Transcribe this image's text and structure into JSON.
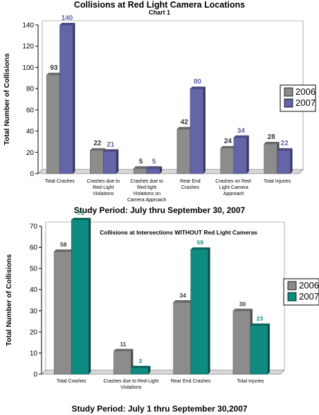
{
  "chart1": {
    "title": "Collisions at Red Light Camera Locations",
    "subtitle": "Chart 1",
    "study_period": "Study Period:  July thru September 30, 2007"
  },
  "chart2": {
    "title": "Collisions at Intersections WITHOUT Red Light Cameras",
    "study_period": "Study Period:  July 1 thru September 30,2007"
  },
  "colors": {
    "y2006": "#8c8c8c",
    "y2007_chart1": "#6464a8",
    "y2007_chart2": "#0f8c80"
  },
  "chart_data": [
    {
      "type": "bar",
      "title": "Collisions at Red Light Camera Locations",
      "subtitle": "Chart 1",
      "ylabel": "Total Number of Collisions",
      "xlabel": "",
      "ylim": [
        0,
        140
      ],
      "yticks": [
        0,
        20,
        40,
        60,
        80,
        100,
        120,
        140
      ],
      "grid": false,
      "legend": "right",
      "categories": [
        [
          "Total Crashes"
        ],
        [
          "Crashes due to",
          "Red-Light",
          "Violations"
        ],
        [
          "Crashes due to",
          "Red-light",
          "Violations on",
          "Camera Approach"
        ],
        [
          "Rear End",
          "Crashes"
        ],
        [
          "Crashes on Red-",
          "Light Camera",
          "Approach"
        ],
        [
          "Total Injuries"
        ]
      ],
      "series": [
        {
          "name": "2006",
          "values": [
            93,
            22,
            5,
            42,
            24,
            28
          ]
        },
        {
          "name": "2007",
          "values": [
            140,
            21,
            5,
            80,
            34,
            22
          ]
        }
      ]
    },
    {
      "type": "bar",
      "title": "Collisions at Intersections WITHOUT Red Light Cameras",
      "ylabel": "Total Number of Collisions",
      "xlabel": "",
      "ylim": [
        0,
        70
      ],
      "yticks": [
        0,
        10,
        20,
        30,
        40,
        50,
        60,
        70
      ],
      "grid": false,
      "legend": "right",
      "categories": [
        [
          "Total Crashes"
        ],
        [
          "Crashes due to Red-Light",
          "Violations"
        ],
        [
          "Rear End      Crashes"
        ],
        [
          "Total Injuries"
        ]
      ],
      "series": [
        {
          "name": "2006",
          "values": [
            58,
            11,
            34,
            30
          ]
        },
        {
          "name": "2007",
          "values": [
            73,
            3,
            59,
            23
          ]
        }
      ]
    }
  ]
}
